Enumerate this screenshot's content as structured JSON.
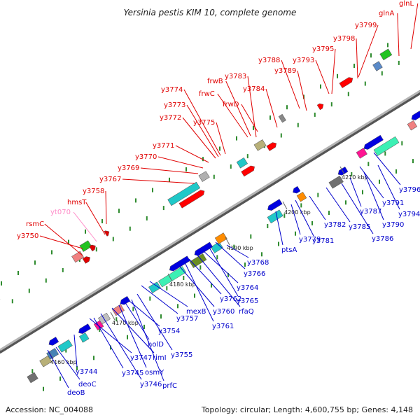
{
  "title": "Yersinia pestis KIM 10, complete genome",
  "footer": {
    "accession": "Accession: NC_004088",
    "stats": "Topology: circular; Length: 4,600,755 bp; Genes: 4,148"
  },
  "colors": {
    "backbone": "#8c8c8c",
    "top_label": "#e00000",
    "rna_label": "#ff8cc8",
    "bottom_label": "#0000cc",
    "tick": "#2e8b2e"
  },
  "kbp_marks": [
    "4160 kbp",
    "4170 kbp",
    "4180 kbp",
    "4190 kbp",
    "4200 kbp",
    "4210 kbp"
  ],
  "top_genes": [
    "y3750",
    "rsmC",
    "yt070",
    "hmsT",
    "y3758",
    "y3767",
    "y3769",
    "y3770",
    "y3771",
    "y3772",
    "y3773",
    "y3774",
    "y3775",
    "frwC",
    "frwB",
    "frwD",
    "y3783",
    "y3784",
    "y3788",
    "y3789",
    "y3793",
    "y3795",
    "y3798",
    "y3799",
    "glnA",
    "glnL"
  ],
  "bottom_genes": [
    "deoB",
    "deoC",
    "y3744",
    "y3745",
    "y3746",
    "y3747",
    "osmY",
    "rimI",
    "prfC",
    "holD",
    "y3755",
    "y3754",
    "y3757",
    "mexB",
    "y3760",
    "y3761",
    "y3762",
    "rfaQ",
    "y3764",
    "y3765",
    "y3766",
    "y3768",
    "ptsA",
    "y3779",
    "y3781",
    "y3782",
    "y3785",
    "y3786",
    "y3787",
    "y3790",
    "y3791",
    "y3794",
    "y3796"
  ]
}
